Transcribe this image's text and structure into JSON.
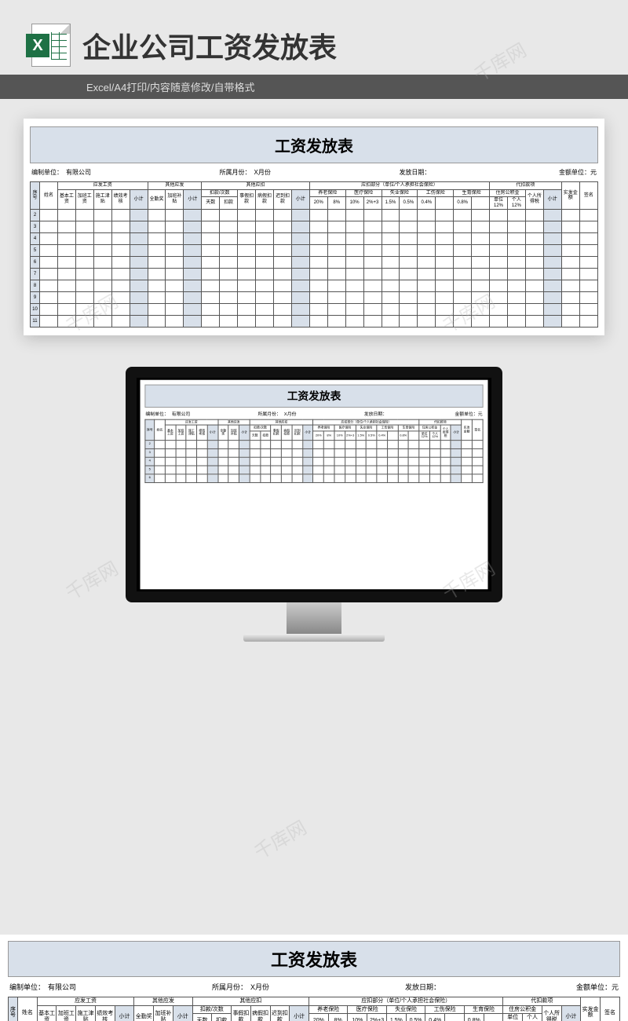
{
  "page": {
    "main_title": "企业公司工资发放表",
    "subtitle": "Excel/A4打印/内容随意修改/自带格式",
    "watermark": "千库网",
    "excel_letter": "X"
  },
  "sheet": {
    "title": "工资发放表",
    "info": {
      "unit_label": "编制单位：",
      "unit_value": "有限公司",
      "month_label": "所属月份：",
      "month_value": "X月份",
      "date_label": "发放日期：",
      "currency_label": "金额单位：元"
    },
    "headers": {
      "seq": "序号",
      "name": "姓名",
      "should_pay": "应发工资",
      "should_items": [
        "基本工资",
        "加班工资",
        "施工津贴",
        "绩效考核",
        "小计"
      ],
      "other_pay": "其他应发",
      "other_pay_items": [
        "全勤奖",
        "加班补贴",
        "小计"
      ],
      "other_deduct": "其他应扣",
      "deduct_sub1": "扣款/次数",
      "deduct_items": [
        "天数",
        "扣款",
        "事假扣款",
        "病假扣款",
        "迟到扣款",
        "小计"
      ],
      "withhold": "应扣部分（单位/个人承担社会保险）",
      "withhold_groups": [
        "养老保险",
        "养老保险基数",
        "医疗保险",
        "失业保险",
        "工伤保险",
        "生育保险"
      ],
      "withhold_sub": [
        "单位",
        "个人"
      ],
      "withhold_rates": [
        "20%",
        "8%",
        "10%",
        "2%+3",
        "1.5%",
        "0.5%",
        "0.4%",
        "",
        "0.8%",
        ""
      ],
      "agent": "代扣款项",
      "agent_items": [
        "住房公积金",
        "个人所得税",
        "小计"
      ],
      "agent_sub": [
        "单位12%",
        "个人12%"
      ],
      "actual": "实发金额",
      "sign": "签名"
    },
    "rows": [
      2,
      3,
      4,
      5,
      6,
      7,
      8,
      9,
      10,
      11
    ]
  },
  "colors": {
    "page_bg": "#e8e8e8",
    "header_blue": "#d8e0ea",
    "dark_bar": "#555555",
    "border": "#555555",
    "excel_green": "#1e7145"
  }
}
